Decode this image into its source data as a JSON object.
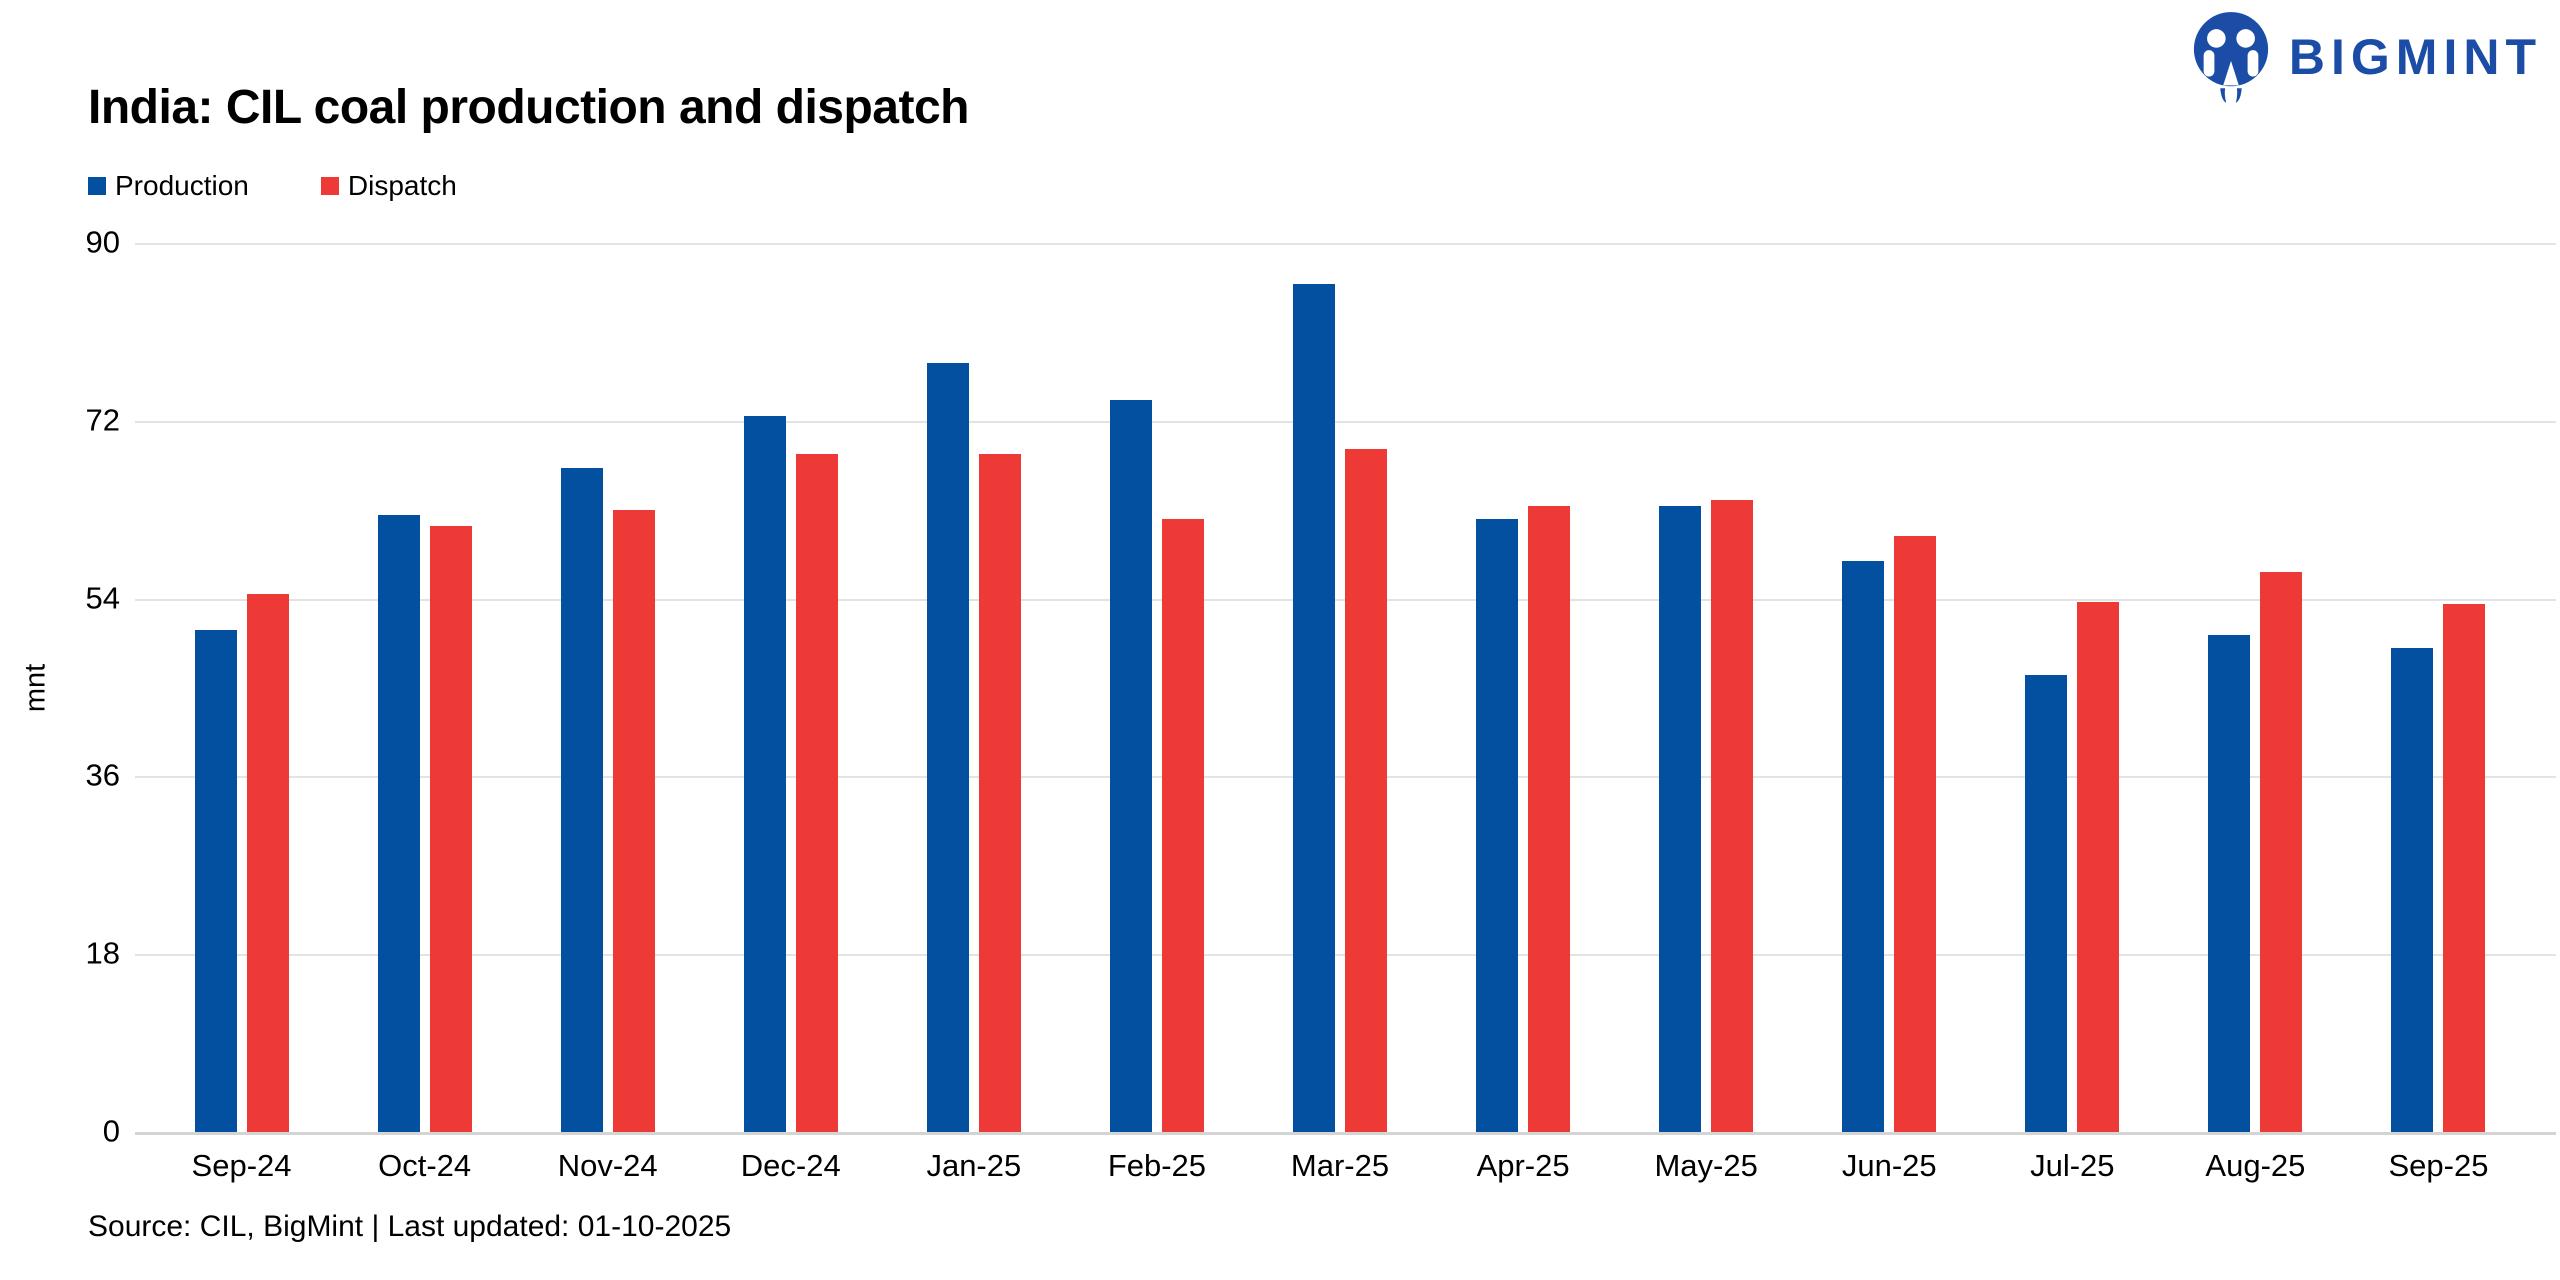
{
  "header": {
    "title": "India: CIL coal production and dispatch",
    "logo_text": "BIGMINT",
    "logo_icon": "bigmint-logo-icon",
    "logo_color": "#1c4da6"
  },
  "legend": [
    {
      "label": "Production",
      "color": "#0450a0"
    },
    {
      "label": "Dispatch",
      "color": "#ee3a37"
    }
  ],
  "chart_data": {
    "type": "bar",
    "title": "India: CIL coal production and dispatch",
    "categories": [
      "Sep-24",
      "Oct-24",
      "Nov-24",
      "Dec-24",
      "Jan-25",
      "Feb-25",
      "Mar-25",
      "Apr-25",
      "May-25",
      "Jun-25",
      "Jul-25",
      "Aug-25",
      "Sep-25"
    ],
    "series": [
      {
        "name": "Production",
        "color": "#0450a0",
        "values": [
          50.8,
          62.5,
          67.2,
          72.5,
          77.9,
          74.1,
          85.9,
          62.1,
          63.4,
          57.8,
          46.3,
          50.3,
          49.0
        ]
      },
      {
        "name": "Dispatch",
        "color": "#ee3a37",
        "values": [
          54.5,
          61.4,
          63.0,
          68.6,
          68.6,
          62.1,
          69.1,
          63.4,
          64.0,
          60.3,
          53.7,
          56.7,
          53.5
        ]
      }
    ],
    "xlabel": "",
    "ylabel": "mnt",
    "ylim": [
      0,
      90
    ],
    "yticks": [
      0,
      18,
      36,
      54,
      72,
      90
    ],
    "grid": true,
    "legend_position": "top-left",
    "gridline_color": "#e3e3e3"
  },
  "footer": {
    "source": "Source: CIL, BigMint | Last updated: 01-10-2025"
  }
}
